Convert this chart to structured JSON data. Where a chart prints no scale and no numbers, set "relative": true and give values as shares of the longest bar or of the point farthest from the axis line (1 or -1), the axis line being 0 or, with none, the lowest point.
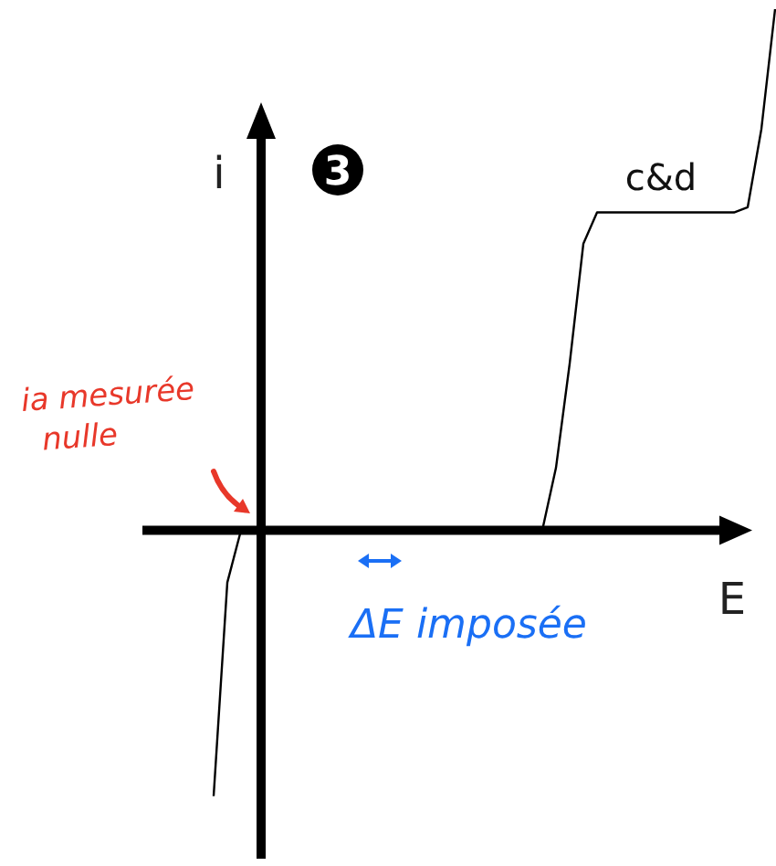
{
  "chart_data": {
    "type": "line",
    "relative": true,
    "xlabel": "E",
    "ylabel": "i",
    "color": "#000000",
    "marker": "none",
    "line_style": "solid",
    "categories": [
      null,
      null,
      null,
      null,
      null,
      null,
      null,
      null,
      null,
      null,
      null,
      null,
      null,
      null,
      null,
      null,
      null,
      null,
      null,
      null,
      null,
      null,
      null,
      null,
      null,
      null,
      null,
      null,
      null,
      null,
      null,
      null,
      null,
      null,
      null,
      null,
      null,
      null,
      null,
      null,
      null,
      null
    ],
    "values": [
      -0.51,
      -0.1,
      0,
      0,
      0,
      0,
      0,
      0,
      0,
      0,
      0,
      0,
      0,
      0,
      0,
      0,
      0,
      0,
      0,
      0,
      0,
      0,
      0,
      0,
      0,
      0.12,
      0.32,
      0.55,
      0.61,
      0.61,
      0.61,
      0.61,
      0.61,
      0.61,
      0.61,
      0.61,
      0.61,
      0.61,
      0.61,
      0.62,
      0.77,
      1
    ],
    "annotations": [
      "3",
      "c&d",
      "ia mesurée nulle",
      "ΔE imposée"
    ]
  }
}
